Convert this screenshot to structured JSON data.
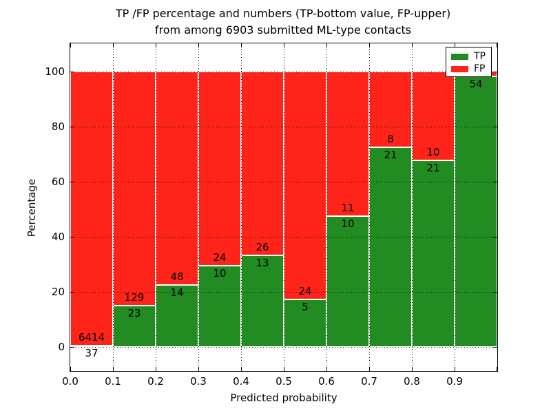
{
  "title": {
    "line1": "TP /FP percentage and numbers (TP-bottom value, FP-upper)",
    "line2": "from among 6903 submitted ML-type contacts"
  },
  "chart_data": {
    "type": "bar",
    "stacked": true,
    "title": "TP /FP percentage and numbers (TP-bottom value, FP-upper)\nfrom among 6903 submitted ML-type contacts",
    "xlabel": "Predicted probability",
    "ylabel": "Percentage",
    "xlim": [
      0.0,
      1.0
    ],
    "ylim": [
      -9,
      110
    ],
    "grid": true,
    "x_tick_labels": [
      "0.0",
      "0.1",
      "0.2",
      "0.3",
      "0.4",
      "0.5",
      "0.6",
      "0.7",
      "0.8",
      "0.9"
    ],
    "y_tick_values": [
      0,
      20,
      40,
      60,
      80,
      100
    ],
    "colors": {
      "tp": "#228b22",
      "fp": "#ff2419"
    },
    "legend": {
      "position": "upper right",
      "entries": [
        {
          "label": "TP",
          "color": "#228b22"
        },
        {
          "label": "FP",
          "color": "#ff2419"
        }
      ]
    },
    "bins": [
      {
        "x0": 0.0,
        "x1": 0.1,
        "tp_label": "37",
        "fp_label": "6414",
        "tp_pct": 0.6
      },
      {
        "x0": 0.1,
        "x1": 0.2,
        "tp_label": "23",
        "fp_label": "129",
        "tp_pct": 15.1
      },
      {
        "x0": 0.2,
        "x1": 0.3,
        "tp_label": "14",
        "fp_label": "48",
        "tp_pct": 22.6
      },
      {
        "x0": 0.3,
        "x1": 0.4,
        "tp_label": "10",
        "fp_label": "24",
        "tp_pct": 29.4
      },
      {
        "x0": 0.4,
        "x1": 0.5,
        "tp_label": "13",
        "fp_label": "26",
        "tp_pct": 33.3
      },
      {
        "x0": 0.5,
        "x1": 0.6,
        "tp_label": "5",
        "fp_label": "24",
        "tp_pct": 17.2
      },
      {
        "x0": 0.6,
        "x1": 0.7,
        "tp_label": "10",
        "fp_label": "11",
        "tp_pct": 47.6
      },
      {
        "x0": 0.7,
        "x1": 0.8,
        "tp_label": "21",
        "fp_label": "8",
        "tp_pct": 72.4
      },
      {
        "x0": 0.8,
        "x1": 0.9,
        "tp_label": "21",
        "fp_label": "10",
        "tp_pct": 67.7
      },
      {
        "x0": 0.9,
        "x1": 1.0,
        "tp_label": "54",
        "fp_label": "",
        "tp_pct": 98.2
      }
    ]
  }
}
